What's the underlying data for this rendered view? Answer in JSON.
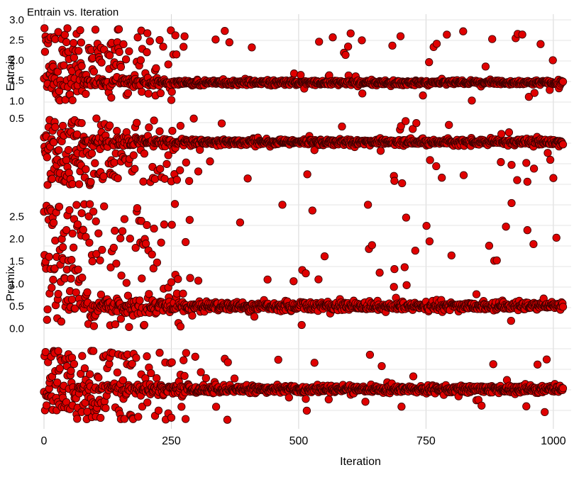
{
  "chart_data": {
    "type": "scatter",
    "title": "Entrain vs. Iteration",
    "xlabel": "Iteration",
    "xlim": [
      0,
      1035
    ],
    "x_ticks": [
      0,
      250,
      500,
      750,
      1000
    ],
    "x_tick_labels": [
      "0",
      "250",
      "500",
      "750",
      "1000"
    ],
    "marker_color": "#e00000",
    "marker_edge": "#400000",
    "grid": true,
    "panels": [
      {
        "ylabel": "Entrain",
        "yticks": [
          {
            "v": 3.0,
            "label": "3.0"
          },
          {
            "v": 2.5,
            "label": "2.5"
          },
          {
            "v": 2.0,
            "label": "2.0"
          },
          {
            "v": 1.5,
            "label": "1.5"
          },
          {
            "v": 1.0,
            "label": "1.0"
          }
        ],
        "ylim": [
          0.9,
          3.0
        ],
        "clusters": [
          {
            "converged_y": 1.45,
            "init_spread": [
              1.0,
              2.8
            ],
            "noise": 0.05
          }
        ]
      },
      {
        "ylabel": "",
        "yticks": [
          {
            "v": 0.5,
            "label": "0.5"
          }
        ],
        "ylim": [
          -1.0,
          0.6
        ],
        "clusters": [
          {
            "converged_y": 0.0,
            "init_spread": [
              -0.9,
              0.5
            ],
            "noise": 0.05
          }
        ]
      },
      {
        "ylabel": "Premix",
        "yticks": [
          {
            "v": 2.5,
            "label": "2.5"
          },
          {
            "v": 2.0,
            "label": "2.0"
          },
          {
            "v": 1.5,
            "label": "1.5"
          },
          {
            "v": 1.0,
            "label": "1.0"
          },
          {
            "v": 0.5,
            "label": "0.5"
          },
          {
            "v": 0.0,
            "label": "0.0"
          }
        ],
        "ylim": [
          -0.1,
          2.9
        ],
        "clusters": [
          {
            "converged_y": 0.5,
            "init_spread": [
              0.0,
              2.8
            ],
            "noise": 0.08
          }
        ]
      },
      {
        "ylabel": "",
        "yticks": [],
        "ylim": [
          -1.0,
          0.1
        ],
        "clusters": [
          {
            "converged_y": -0.55,
            "init_spread": [
              -0.95,
              -0.05
            ],
            "noise": 0.04
          }
        ]
      }
    ]
  }
}
